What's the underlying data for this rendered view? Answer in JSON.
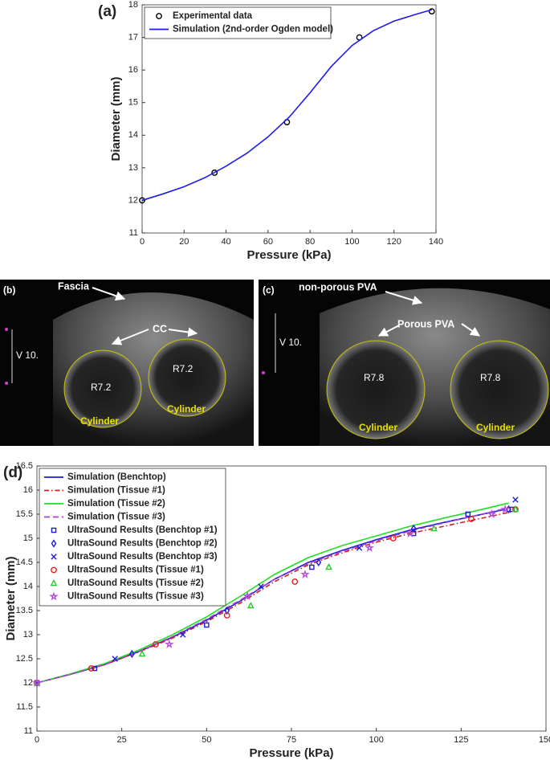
{
  "chart_data": [
    {
      "type": "line",
      "panel_label": "(a)",
      "x_label": "Pressure (kPa)",
      "y_label": "Diameter (mm)",
      "xlim": [
        0,
        140
      ],
      "xticks": [
        0,
        20,
        40,
        60,
        80,
        100,
        120,
        140
      ],
      "ylim": [
        11,
        18
      ],
      "yticks": [
        11,
        12,
        13,
        14,
        15,
        16,
        17,
        18
      ],
      "legend": "upper left",
      "series": [
        {
          "name": "Experimental data",
          "mode": "markers",
          "marker": "o",
          "color": "#000000",
          "x": [
            0,
            34.5,
            69,
            103.5,
            138
          ],
          "values": [
            12,
            12.85,
            14.4,
            17,
            17.8
          ]
        },
        {
          "name": "Simulation (2nd-order Ogden model)",
          "mode": "line",
          "dash": "solid",
          "color": "#1c1cf0",
          "x": [
            0,
            10,
            20,
            30,
            40,
            50,
            60,
            70,
            80,
            90,
            100,
            110,
            120,
            130,
            138
          ],
          "values": [
            12,
            12.2,
            12.42,
            12.7,
            13.05,
            13.45,
            13.95,
            14.55,
            15.3,
            16.1,
            16.75,
            17.2,
            17.5,
            17.7,
            17.85
          ]
        }
      ]
    },
    {
      "type": "line",
      "panel_label": "(d)",
      "x_label": "Pressure (kPa)",
      "y_label": "Diameter (mm)",
      "xlim": [
        0,
        150
      ],
      "xticks": [
        0,
        25,
        50,
        75,
        100,
        125,
        150
      ],
      "ylim": [
        11,
        16.5
      ],
      "yticks": [
        11,
        11.5,
        12,
        12.5,
        13,
        13.5,
        14,
        14.5,
        15,
        15.5,
        16,
        16.5
      ],
      "legend": "upper left",
      "series": [
        {
          "name": "Simulation (Benchtop)",
          "mode": "line",
          "dash": "solid",
          "color": "#1c1cd8",
          "x": [
            0,
            10,
            20,
            30,
            40,
            50,
            60,
            70,
            80,
            90,
            100,
            110,
            120,
            130,
            138
          ],
          "values": [
            12,
            12.18,
            12.38,
            12.65,
            12.95,
            13.3,
            13.7,
            14.15,
            14.5,
            14.75,
            14.97,
            15.17,
            15.33,
            15.48,
            15.6
          ]
        },
        {
          "name": "Simulation (Tissue #1)",
          "mode": "line",
          "dash": "dashdot",
          "color": "#d81c1c",
          "x": [
            0,
            10,
            20,
            30,
            40,
            50,
            60,
            70,
            80,
            90,
            100,
            110,
            120,
            130,
            140
          ],
          "values": [
            12,
            12.18,
            12.38,
            12.64,
            12.93,
            13.27,
            13.66,
            14.1,
            14.45,
            14.7,
            14.92,
            15.1,
            15.25,
            15.4,
            15.55
          ]
        },
        {
          "name": "Simulation (Tissue #2)",
          "mode": "line",
          "dash": "solid",
          "color": "#22dd22",
          "x": [
            0,
            10,
            20,
            30,
            40,
            50,
            60,
            70,
            80,
            90,
            100,
            110,
            120,
            130,
            139
          ],
          "values": [
            12,
            12.19,
            12.4,
            12.68,
            13,
            13.37,
            13.8,
            14.25,
            14.6,
            14.85,
            15.05,
            15.25,
            15.42,
            15.58,
            15.73
          ]
        },
        {
          "name": "Simulation (Tissue #3)",
          "mode": "line",
          "dash": "dash",
          "color": "#a040d0",
          "x": [
            0,
            10,
            20,
            30,
            40,
            50,
            60,
            70,
            80,
            90,
            100,
            110,
            120,
            130,
            137
          ],
          "values": [
            12,
            12.18,
            12.38,
            12.65,
            12.96,
            13.32,
            13.72,
            14.15,
            14.48,
            14.73,
            14.95,
            15.15,
            15.32,
            15.48,
            15.6
          ]
        },
        {
          "name": "UltraSound Results (Benchtop #1)",
          "mode": "markers",
          "marker": "s",
          "color": "#1c1cd8",
          "x": [
            17,
            50,
            81,
            111,
            127,
            140
          ],
          "values": [
            12.3,
            13.2,
            14.4,
            15.1,
            15.5,
            15.6
          ]
        },
        {
          "name": "UltraSound Results (Benchtop #2)",
          "mode": "markers",
          "marker": "d",
          "color": "#1c1cd8",
          "x": [
            0,
            28,
            56,
            83,
            111,
            139
          ],
          "values": [
            12,
            12.6,
            13.5,
            14.5,
            15.2,
            15.6
          ]
        },
        {
          "name": "UltraSound Results (Benchtop #3)",
          "mode": "markers",
          "marker": "x",
          "color": "#1c1cd8",
          "x": [
            0,
            23,
            43,
            66,
            95,
            141
          ],
          "values": [
            12,
            12.5,
            13,
            14,
            14.8,
            15.8
          ]
        },
        {
          "name": "UltraSound Results (Tissue #1)",
          "mode": "markers",
          "marker": "o",
          "color": "#e02020",
          "x": [
            0,
            16,
            35,
            56,
            76,
            105,
            128,
            141
          ],
          "values": [
            12,
            12.3,
            12.8,
            13.4,
            14.1,
            15,
            15.4,
            15.6
          ]
        },
        {
          "name": "UltraSound Results (Tissue #2)",
          "mode": "markers",
          "marker": "^",
          "color": "#22cc22",
          "x": [
            0,
            31,
            63,
            86,
            117,
            141
          ],
          "values": [
            12,
            12.6,
            13.6,
            14.4,
            15.2,
            15.6
          ]
        },
        {
          "name": "UltraSound Results (Tissue #3)",
          "mode": "markers",
          "marker": "*",
          "color": "#b050d8",
          "x": [
            0,
            39,
            62,
            79,
            98,
            110,
            134,
            138
          ],
          "values": [
            12,
            12.8,
            13.8,
            14.25,
            14.8,
            15.1,
            15.5,
            15.6
          ]
        }
      ]
    }
  ],
  "images": [
    {
      "panel_label": "(b)",
      "labels": [
        "Fascia",
        "CC",
        "V 10.",
        "R7.2",
        "R7.2",
        "Cylinder",
        "Cylinder"
      ]
    },
    {
      "panel_label": "(c)",
      "labels": [
        "non-porous PVA",
        "Porous PVA",
        "V 10.",
        "R7.8",
        "R7.8",
        "Cylinder",
        "Cylinder"
      ]
    }
  ]
}
